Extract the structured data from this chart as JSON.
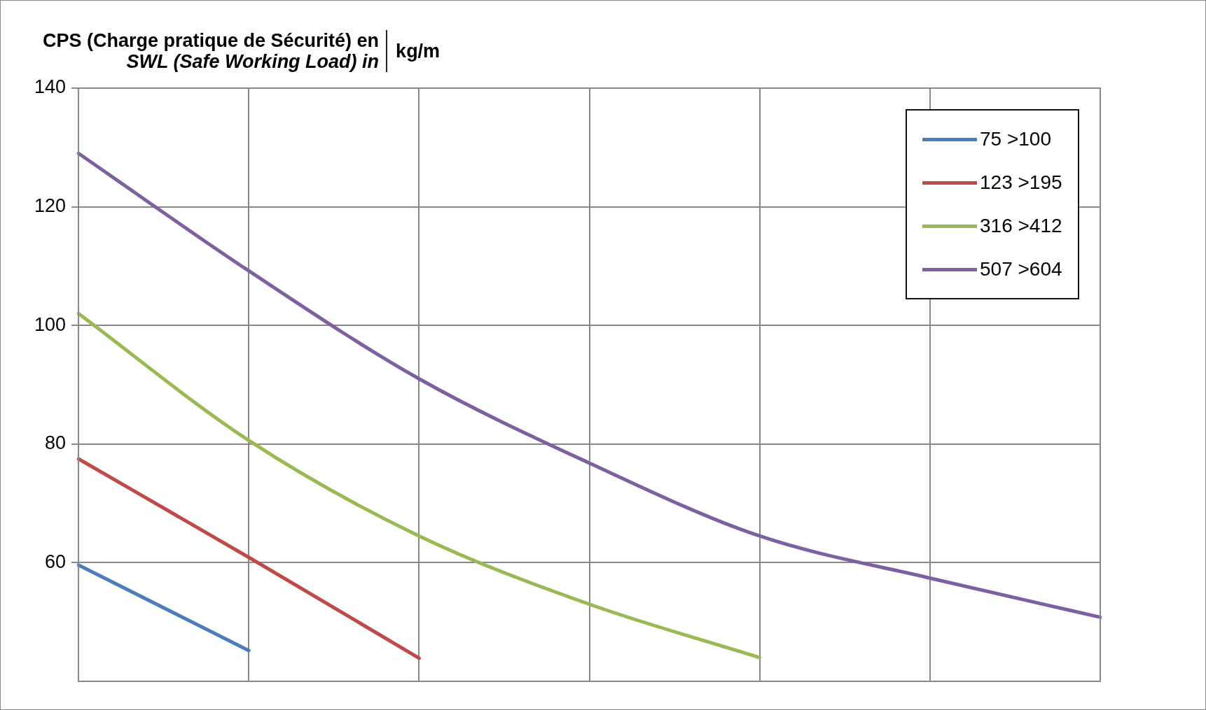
{
  "chart_data": {
    "type": "line",
    "title": "CPS (Charge pratique de Sécurité) en",
    "subtitle": "SWL (Safe Working Load) in",
    "ylabel": "kg/m",
    "categories": [
      null,
      null,
      null,
      null,
      null,
      null,
      null
    ],
    "series": [
      {
        "name": "75 >100",
        "color": "#4a7ebb",
        "values": [
          59.6,
          45.2,
          null,
          null,
          null,
          null,
          null
        ]
      },
      {
        "name": "123 >195",
        "color": "#be4b48",
        "values": [
          77.5,
          60.9,
          43.9,
          null,
          null,
          null,
          null
        ]
      },
      {
        "name": "316 >412",
        "color": "#98b954",
        "values": [
          102,
          80.6,
          64.5,
          53,
          44,
          null,
          null
        ]
      },
      {
        "name": "507 >604",
        "color": "#7d60a0",
        "values": [
          129,
          109.2,
          91,
          76.8,
          64.5,
          57.4,
          50.8
        ]
      }
    ],
    "ylim": [
      40,
      140
    ],
    "yticks": [
      60,
      80,
      100,
      120,
      140
    ],
    "grid": true,
    "legend": "top right",
    "marker": "none",
    "line_style": "solid",
    "tick_labels": "y"
  }
}
